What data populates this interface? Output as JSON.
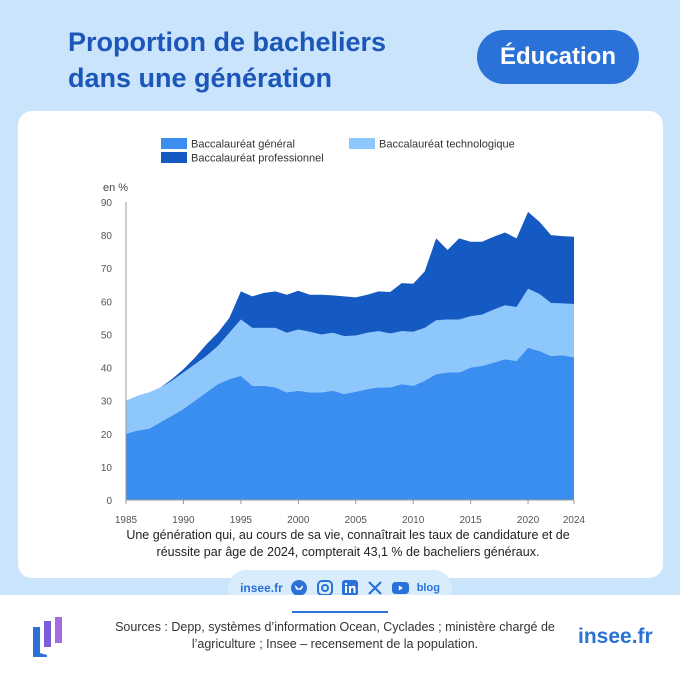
{
  "header": {
    "title": "Proportion de bacheliers dans une génération",
    "badge": "Éducation"
  },
  "chart_data": {
    "type": "area",
    "stacked": true,
    "ylabel": "en %",
    "ylim": [
      0,
      90
    ],
    "yticks": [
      0,
      10,
      20,
      30,
      40,
      50,
      60,
      70,
      80,
      90
    ],
    "xticks": [
      1985,
      1990,
      1995,
      2000,
      2005,
      2010,
      2015,
      2020,
      2024
    ],
    "xlim": [
      1985,
      2024
    ],
    "grid": false,
    "legend_position": "top",
    "x": [
      1985,
      1986,
      1987,
      1988,
      1989,
      1990,
      1991,
      1992,
      1993,
      1994,
      1995,
      1996,
      1997,
      1998,
      1999,
      2000,
      2001,
      2002,
      2003,
      2004,
      2005,
      2006,
      2007,
      2008,
      2009,
      2010,
      2011,
      2012,
      2013,
      2014,
      2015,
      2016,
      2017,
      2018,
      2019,
      2020,
      2021,
      2022,
      2023,
      2024
    ],
    "series": [
      {
        "name": "Baccalauréat général",
        "color": "#3a8ef0",
        "values": [
          20,
          21,
          21.5,
          23.5,
          25.5,
          27.5,
          30,
          32.5,
          35,
          36.5,
          37.5,
          34.5,
          34.5,
          34,
          32.5,
          33,
          32.5,
          32.5,
          33,
          32,
          32.7,
          33.5,
          34,
          34,
          35,
          34.5,
          36,
          38,
          38.5,
          38.5,
          40,
          40.5,
          41.5,
          42.5,
          42,
          46,
          45,
          43.5,
          43.7,
          43.1
        ]
      },
      {
        "name": "Baccalauréat technologique",
        "color": "#8ec7fb",
        "values": [
          10,
          10.5,
          11,
          10.5,
          10.5,
          11,
          11,
          11,
          11.5,
          14,
          17,
          17.5,
          17.5,
          18,
          18,
          18.5,
          18.3,
          17.5,
          17.5,
          17.5,
          17,
          17,
          17,
          16.3,
          16,
          16.3,
          16,
          16.3,
          16,
          16,
          15.5,
          15.5,
          16,
          16.3,
          16.3,
          17.8,
          17.2,
          16,
          15.7,
          16.1
        ]
      },
      {
        "name": "Baccalauréat professionnel",
        "color": "#1559c2",
        "values": [
          0,
          0,
          0,
          0,
          0.5,
          1,
          2,
          3.5,
          4,
          4.5,
          8.5,
          9.5,
          10.5,
          11,
          11.5,
          11.7,
          11.2,
          12,
          11.3,
          12,
          11.5,
          11.5,
          12,
          12.5,
          14.5,
          14.5,
          17,
          24.7,
          21,
          24.5,
          22.5,
          22,
          22,
          22,
          20.7,
          23.2,
          21.8,
          20.5,
          20.3,
          20.3
        ]
      }
    ]
  },
  "note": "Une génération qui, au cours de sa vie, connaîtrait les taux de candidature et de réussite par âge de 2024, compterait 43,1 % de bacheliers généraux.",
  "social": {
    "site": "insee.fr",
    "blog": "blog",
    "icons": [
      "bluesky-icon",
      "instagram-icon",
      "linkedin-icon",
      "x-icon",
      "youtube-icon"
    ]
  },
  "footer": {
    "sources": "Sources : Depp, systèmes d’information Ocean, Cyclades ; ministère chargé de l’agriculture ; Insee – recensement de la population.",
    "brand": "insee.fr"
  }
}
